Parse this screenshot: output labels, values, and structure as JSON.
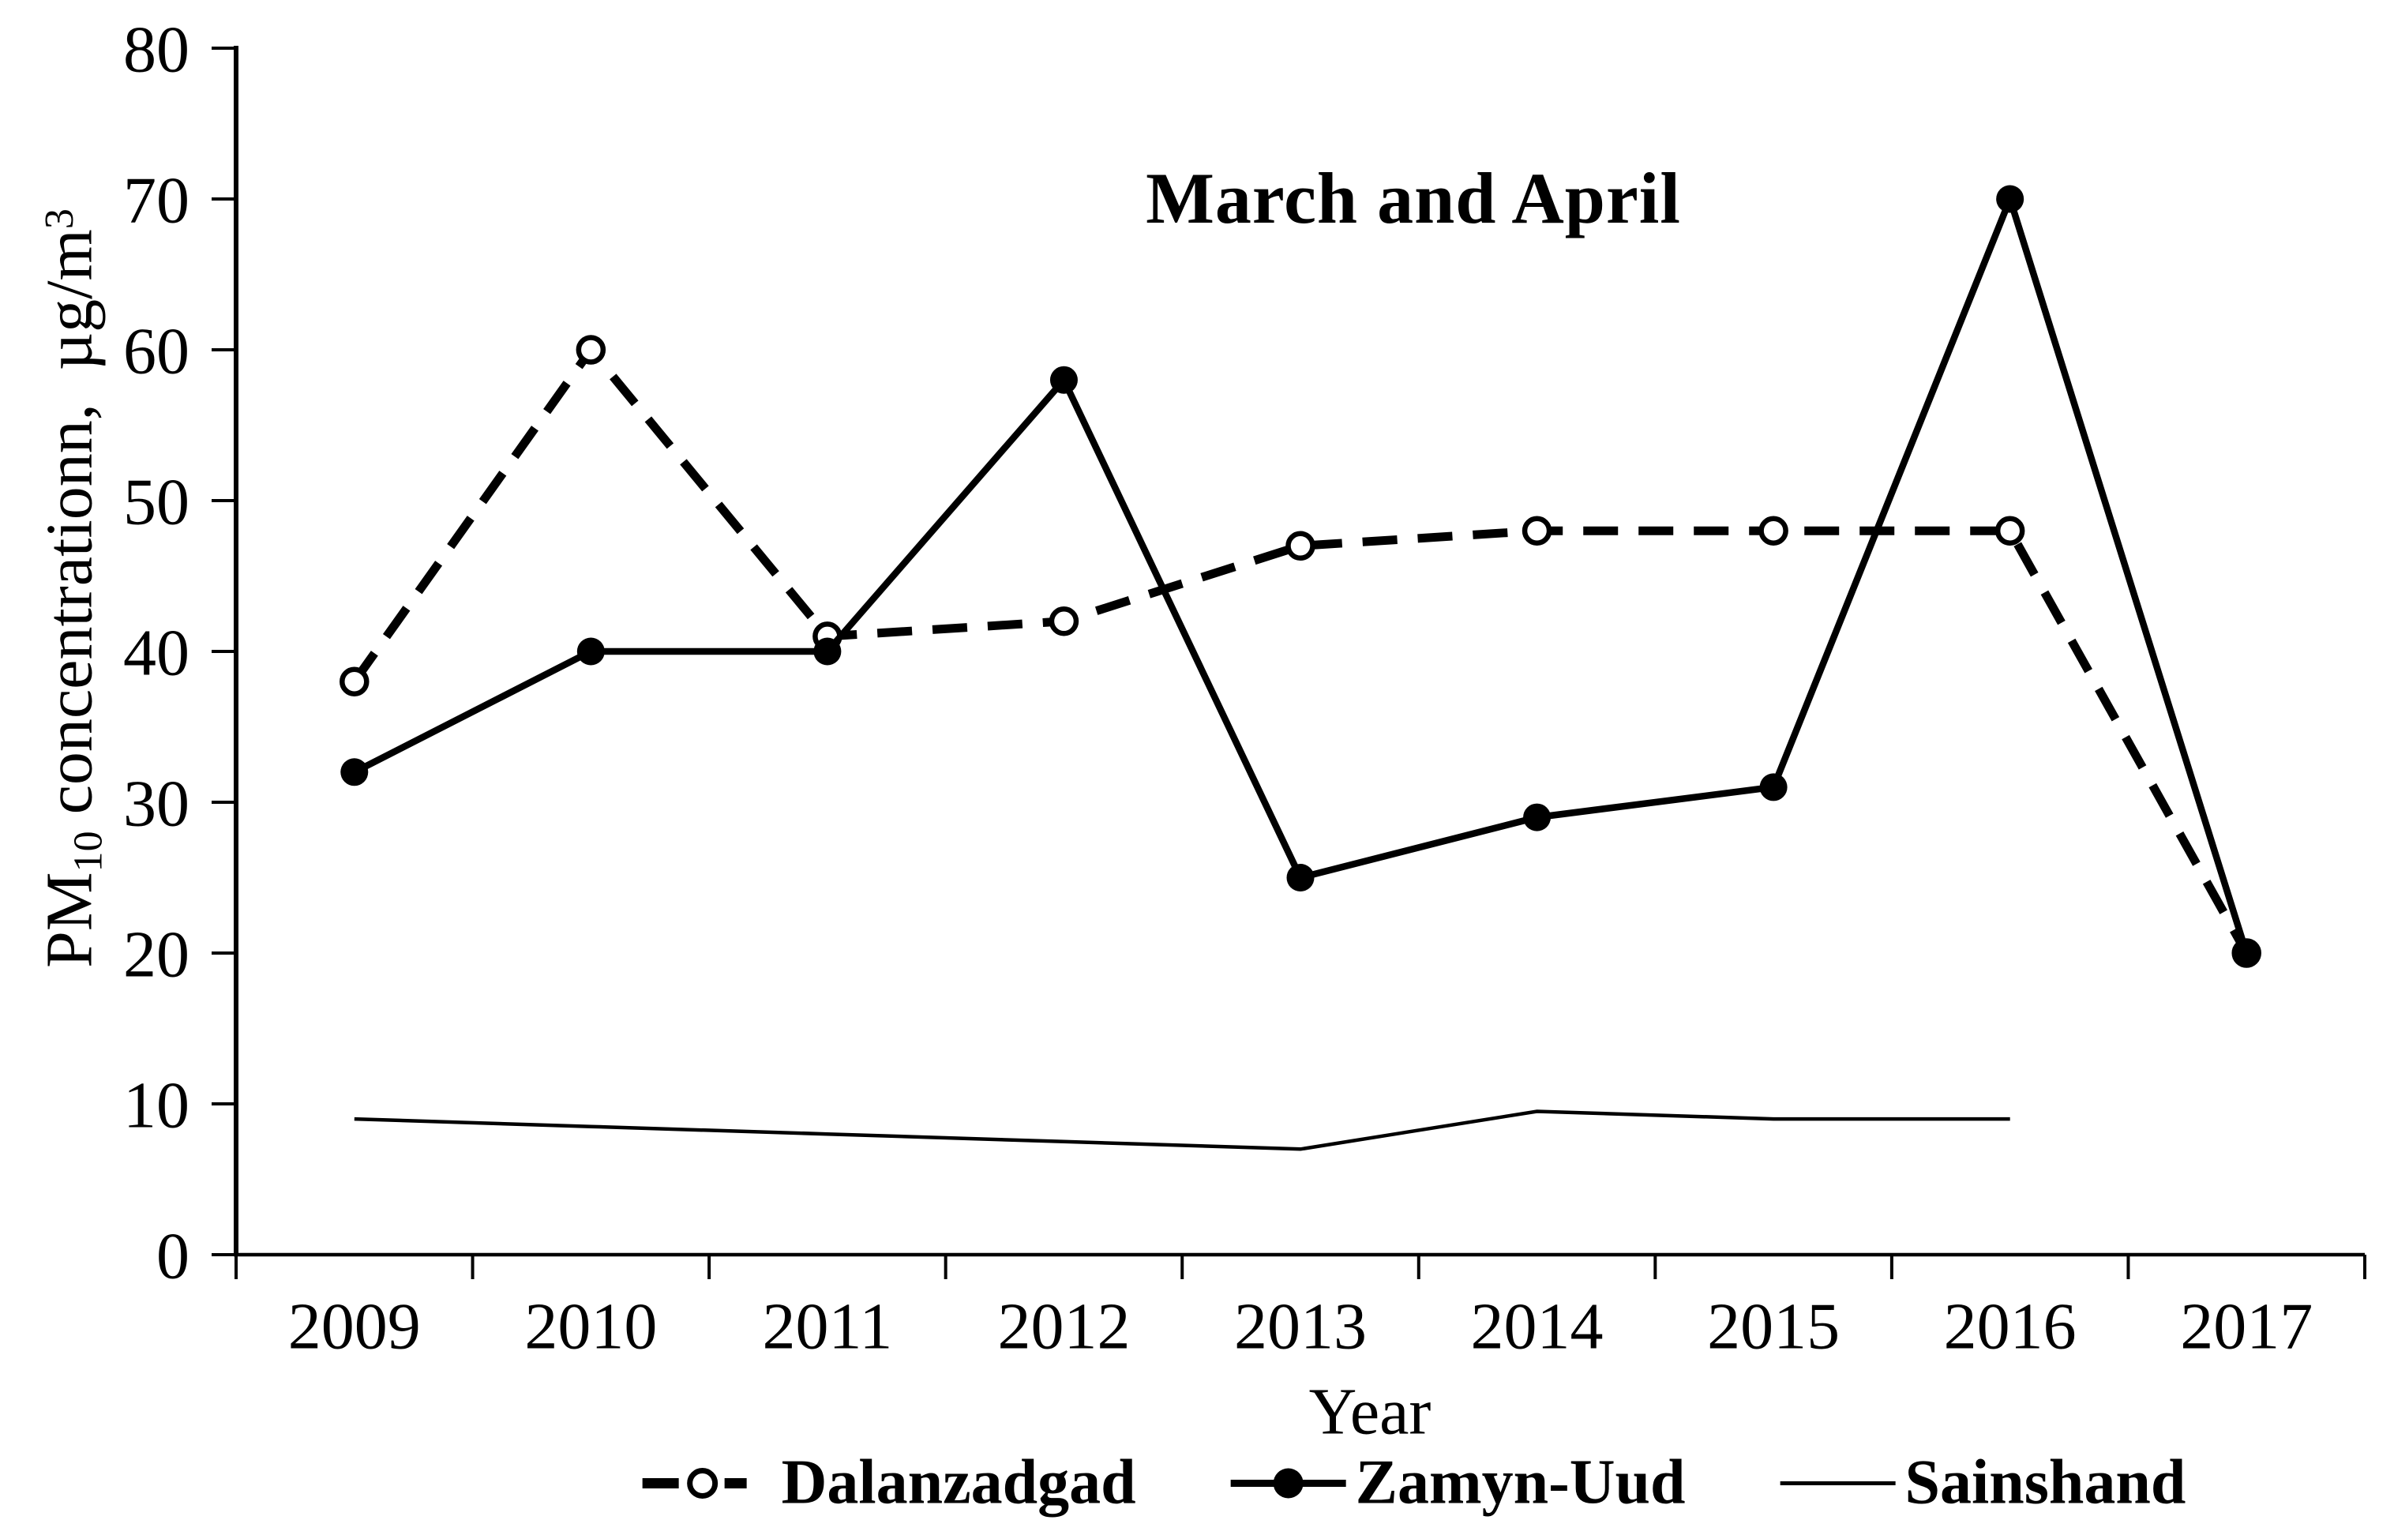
{
  "figure": {
    "title": "March and April",
    "x_axis_title": "Year",
    "y_axis_title": {
      "prefix": "PM",
      "sub": "10",
      "main": " concentrationn,  µg/m",
      "sup": "3"
    },
    "legend": [
      {
        "label": "Dalanzadgad",
        "icon": "dashed-open-circle-icon"
      },
      {
        "label": "Zamyn-Uud",
        "icon": "solid-filled-circle-icon"
      },
      {
        "label": "Sainshand",
        "icon": "thin-line-icon"
      }
    ]
  },
  "chart_data": {
    "type": "line",
    "title": "March and April",
    "xlabel": "Year",
    "ylabel": "PM10 concentrationn, µg/m3",
    "categories": [
      2009,
      2010,
      2011,
      2012,
      2013,
      2014,
      2015,
      2016,
      2017
    ],
    "ylim": [
      0,
      80
    ],
    "y_tick_step": 10,
    "grid": false,
    "legend_position": "bottom",
    "series": [
      {
        "name": "Dalanzadgad",
        "line_style": "dashed",
        "marker": "open-circle",
        "values": [
          38,
          60,
          41,
          42,
          47,
          48,
          48,
          48,
          20
        ]
      },
      {
        "name": "Zamyn-Uud",
        "line_style": "solid",
        "marker": "filled-circle",
        "values": [
          32,
          40,
          40,
          58,
          25,
          29,
          31,
          70,
          20
        ]
      },
      {
        "name": "Sainshand",
        "line_style": "thin-solid",
        "marker": "none",
        "values": [
          9,
          8.5,
          8,
          7.5,
          7,
          9.5,
          9,
          9,
          null
        ]
      }
    ]
  },
  "colors": {
    "ink": "#000000",
    "background": "#ffffff"
  }
}
